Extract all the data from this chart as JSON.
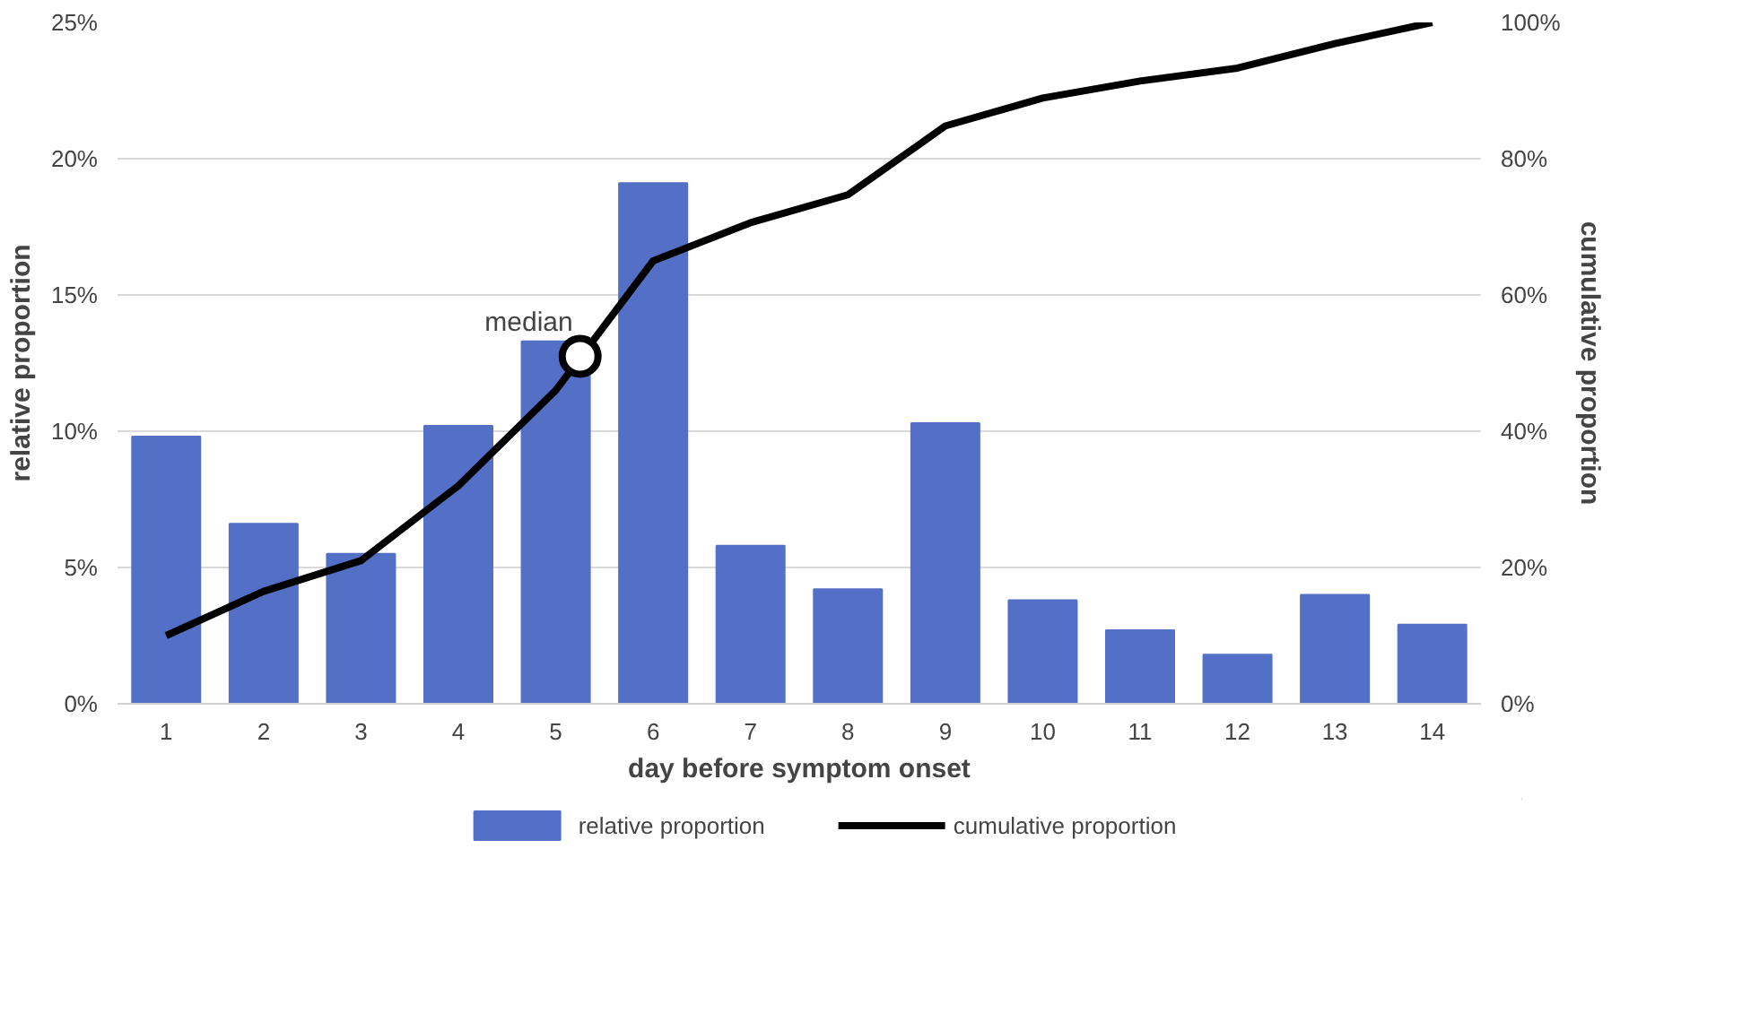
{
  "chart_data": {
    "type": "bar",
    "xlabel": "day before symptom onset",
    "ylabel": "relative proportion",
    "y2label": "cumulative proportion",
    "x": [
      1,
      2,
      3,
      4,
      5,
      6,
      7,
      8,
      9,
      10,
      11,
      12,
      13,
      14
    ],
    "xlim": [
      0.5,
      14.5
    ],
    "xticks": [
      1,
      2,
      3,
      4,
      5,
      6,
      7,
      8,
      9,
      10,
      11,
      12,
      13,
      14
    ],
    "ylim": [
      0,
      25
    ],
    "yticks": [
      {
        "value": 0,
        "label": "0%"
      },
      {
        "value": 5,
        "label": "5%"
      },
      {
        "value": 10,
        "label": "10%"
      },
      {
        "value": 15,
        "label": "15%"
      },
      {
        "value": 20,
        "label": "20%"
      },
      {
        "value": 25,
        "label": "25%"
      }
    ],
    "y2lim": [
      0,
      100
    ],
    "y2ticks": [
      {
        "value": 0,
        "label": "0%"
      },
      {
        "value": 20,
        "label": "20%"
      },
      {
        "value": 40,
        "label": "40%"
      },
      {
        "value": 60,
        "label": "60%"
      },
      {
        "value": 80,
        "label": "80%"
      },
      {
        "value": 100,
        "label": "100%"
      }
    ],
    "series": [
      {
        "name": "relative proportion",
        "color": "#5470c6",
        "values": [
          9.8,
          6.6,
          5.5,
          10.2,
          13.3,
          19.1,
          5.8,
          4.2,
          10.3,
          3.8,
          2.7,
          1.8,
          4.0,
          2.9
        ]
      },
      {
        "name": "cumulative proportion",
        "type": "line",
        "axis": "y2",
        "color": "#000000",
        "values": [
          10,
          16.5,
          21,
          32,
          46,
          65,
          70.6,
          74.7,
          84.8,
          88.9,
          91.4,
          93.3,
          96.9,
          100
        ]
      },
      {
        "name": "median",
        "type": "scatter",
        "axis": "y2",
        "marker": "circle",
        "color": "#000000",
        "x": [
          5.25
        ],
        "values": [
          51
        ]
      }
    ],
    "grid": "y",
    "legend": "bottom"
  }
}
